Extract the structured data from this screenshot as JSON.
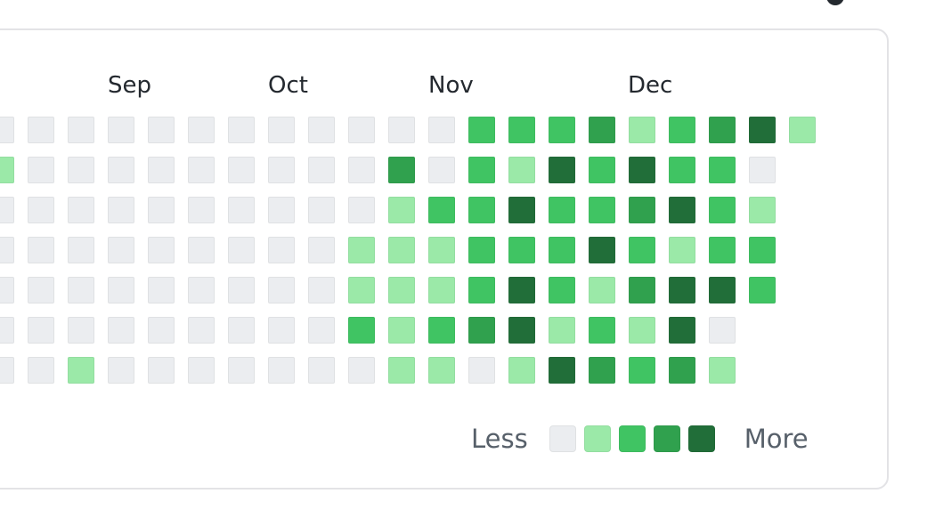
{
  "colors": {
    "level0": "#ebedf0",
    "level1": "#9be9a8",
    "level2": "#40c463",
    "level3": "#30a14e",
    "level4": "#216e39"
  },
  "months": [
    {
      "key": "sep",
      "label": "Sep"
    },
    {
      "key": "oct",
      "label": "Oct"
    },
    {
      "key": "nov",
      "label": "Nov"
    },
    {
      "key": "dec",
      "label": "Dec"
    }
  ],
  "contribution_levels": [
    [
      0,
      0,
      0,
      0,
      0,
      0,
      0,
      0,
      0,
      0,
      0,
      0,
      2,
      2,
      2,
      3,
      1,
      2,
      3,
      4,
      1
    ],
    [
      1,
      0,
      0,
      0,
      0,
      0,
      0,
      0,
      0,
      0,
      3,
      0,
      2,
      1,
      4,
      2,
      4,
      2,
      2,
      0
    ],
    [
      0,
      0,
      0,
      0,
      0,
      0,
      0,
      0,
      0,
      0,
      1,
      2,
      2,
      4,
      2,
      2,
      3,
      4,
      2,
      1
    ],
    [
      0,
      0,
      0,
      0,
      0,
      0,
      0,
      0,
      0,
      1,
      1,
      1,
      2,
      2,
      2,
      4,
      2,
      1,
      2,
      2
    ],
    [
      0,
      0,
      0,
      0,
      0,
      0,
      0,
      0,
      0,
      1,
      1,
      1,
      2,
      4,
      2,
      1,
      3,
      4,
      4,
      2
    ],
    [
      0,
      0,
      0,
      0,
      0,
      0,
      0,
      0,
      0,
      2,
      1,
      2,
      3,
      4,
      1,
      2,
      1,
      4,
      0
    ],
    [
      0,
      0,
      1,
      0,
      0,
      0,
      0,
      0,
      0,
      0,
      1,
      1,
      0,
      1,
      4,
      3,
      2,
      3,
      1
    ]
  ],
  "legend": {
    "less_label": "Less",
    "more_label": "More",
    "levels": [
      0,
      1,
      2,
      3,
      4
    ]
  }
}
